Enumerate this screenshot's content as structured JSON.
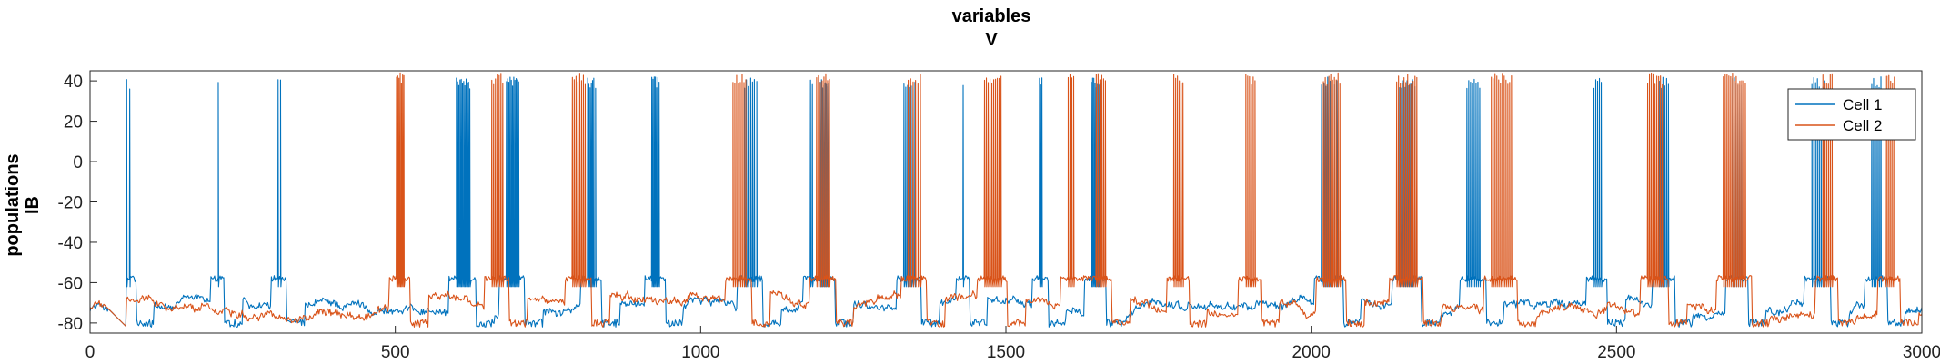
{
  "chart_data": {
    "type": "line",
    "title": [
      "variables",
      "V"
    ],
    "xlabel": "",
    "ylabel": [
      "populations",
      "IB"
    ],
    "xlim": [
      0,
      3000
    ],
    "ylim": [
      -85,
      45
    ],
    "xticks": [
      0,
      500,
      1000,
      1500,
      2000,
      2500,
      3000
    ],
    "yticks": [
      -80,
      -60,
      -40,
      -20,
      0,
      20,
      40
    ],
    "grid": false,
    "legend": {
      "placement": "top-right"
    },
    "colors": {
      "cell1": "#0072BD",
      "cell2": "#D95319"
    },
    "series": [
      {
        "name": "Cell 1",
        "color": "#0072BD",
        "baseline": -72,
        "spike_peak": 42,
        "spike_times": [
          60,
          65,
          210,
          308,
          312,
          600,
          602,
          604,
          606,
          608,
          610,
          612,
          614,
          616,
          618,
          620,
          622,
          682,
          684,
          686,
          688,
          690,
          692,
          694,
          696,
          698,
          700,
          702,
          815,
          817,
          819,
          821,
          823,
          825,
          828,
          920,
          922,
          924,
          926,
          928,
          930,
          932,
          1072,
          1075,
          1078,
          1082,
          1085,
          1088,
          1092,
          1180,
          1183,
          1196,
          1198,
          1200,
          1202,
          1204,
          1206,
          1208,
          1210,
          1333,
          1336,
          1339,
          1342,
          1345,
          1348,
          1351,
          1430,
          1555,
          1557,
          1559,
          1640,
          1642,
          1644,
          1646,
          1648,
          1650,
          1652,
          1654,
          2017,
          2021,
          2024,
          2027,
          2031,
          2034,
          2038,
          2042,
          2145,
          2148,
          2151,
          2154,
          2157,
          2160,
          2163,
          2166,
          2170,
          2255,
          2258,
          2261,
          2264,
          2267,
          2270,
          2273,
          2276,
          2463,
          2466,
          2469,
          2472,
          2475,
          2570,
          2573,
          2576,
          2579,
          2582,
          2585,
          2690,
          2693,
          2696,
          2699,
          2702,
          2705,
          2820,
          2823,
          2826,
          2829,
          2832,
          2835,
          2838,
          2841,
          2918,
          2921,
          2924,
          2927,
          2930,
          2933
        ]
      },
      {
        "name": "Cell 2",
        "color": "#D95319",
        "baseline": -72,
        "spike_peak": 44,
        "spike_times": [
          502,
          504,
          506,
          508,
          510,
          512,
          514,
          658,
          661,
          664,
          667,
          670,
          673,
          676,
          790,
          793,
          796,
          799,
          802,
          805,
          808,
          811,
          1053,
          1056,
          1059,
          1062,
          1065,
          1068,
          1071,
          1074,
          1190,
          1193,
          1196,
          1199,
          1202,
          1205,
          1208,
          1211,
          1340,
          1344,
          1348,
          1352,
          1356,
          1360,
          1465,
          1468,
          1471,
          1474,
          1477,
          1480,
          1483,
          1486,
          1489,
          1492,
          1602,
          1605,
          1608,
          1611,
          1648,
          1651,
          1654,
          1657,
          1660,
          1663,
          1775,
          1778,
          1781,
          1784,
          1787,
          1790,
          1893,
          1896,
          1899,
          1902,
          1905,
          1908,
          2020,
          2023,
          2026,
          2029,
          2032,
          2035,
          2038,
          2041,
          2044,
          2047,
          2140,
          2143,
          2146,
          2149,
          2152,
          2155,
          2158,
          2161,
          2164,
          2167,
          2170,
          2173,
          2295,
          2298,
          2301,
          2304,
          2307,
          2310,
          2313,
          2316,
          2319,
          2322,
          2325,
          2328,
          2551,
          2554,
          2557,
          2560,
          2563,
          2566,
          2569,
          2572,
          2575,
          2675,
          2678,
          2681,
          2684,
          2687,
          2690,
          2693,
          2696,
          2699,
          2702,
          2705,
          2708,
          2711,
          2838,
          2841,
          2844,
          2847,
          2850,
          2853,
          2940,
          2943,
          2946,
          2949,
          2952,
          2955
        ]
      }
    ]
  }
}
